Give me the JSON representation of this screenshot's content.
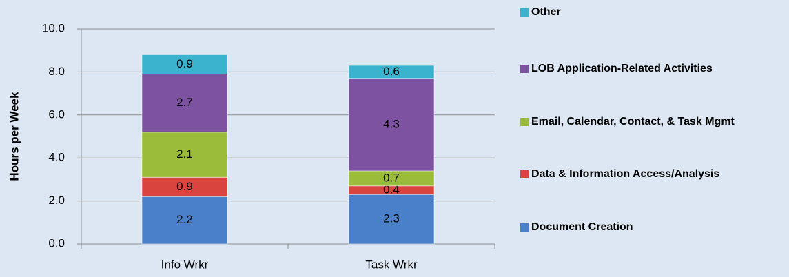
{
  "chart_data": {
    "type": "stacked_bar",
    "y_label": "Hours per Week",
    "categories": [
      "Info Wrkr",
      "Task Wrkr"
    ],
    "series": [
      {
        "name": "Document Creation",
        "color": "#4a7fc9",
        "values": [
          2.2,
          2.3
        ]
      },
      {
        "name": "Data & Information Access/Analysis",
        "color": "#d9443f",
        "values": [
          0.9,
          0.4
        ]
      },
      {
        "name": "Email, Calendar, Contact, & Task Mgmt",
        "color": "#9bbb3b",
        "values": [
          2.1,
          0.7
        ]
      },
      {
        "name": "LOB Application-Related Activities",
        "color": "#7d52a0",
        "values": [
          2.7,
          4.3
        ]
      },
      {
        "name": "Other",
        "color": "#3bb3cf",
        "values": [
          0.9,
          0.6
        ]
      }
    ],
    "ylim": [
      0,
      10
    ],
    "yticks": [
      {
        "value": 0,
        "label": "0.0"
      },
      {
        "value": 2,
        "label": "2.0"
      },
      {
        "value": 4,
        "label": "4.0"
      },
      {
        "value": 6,
        "label": "6.0"
      },
      {
        "value": 8,
        "label": "8.0"
      },
      {
        "value": 10,
        "label": "10.0"
      }
    ],
    "grid": true,
    "legend": "right"
  }
}
